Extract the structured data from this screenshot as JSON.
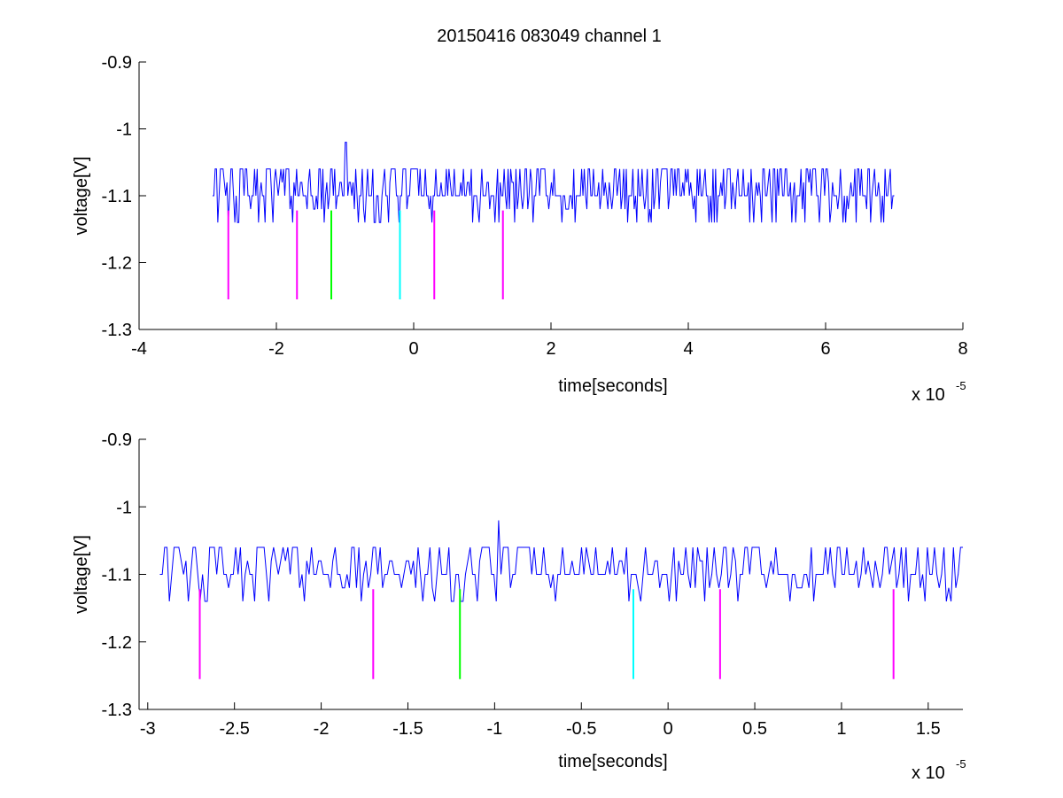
{
  "title": "20150416 083049 channel 1",
  "colors": {
    "signal": "#0000ff",
    "marker_magenta": "#ff00ff",
    "marker_green": "#00ff00",
    "marker_cyan": "#00ffff",
    "axes": "#000000",
    "background": "#ffffff"
  },
  "chart_data": [
    {
      "type": "line",
      "name": "full",
      "xlabel": "time[seconds]",
      "ylabel": "voltage[V]",
      "x_exponent_label": "x 10",
      "x_exponent": "-5",
      "xlim": [
        -4,
        8
      ],
      "ylim": [
        -1.3,
        -0.9
      ],
      "xticks": [
        -4,
        -2,
        0,
        2,
        4,
        6,
        8
      ],
      "xtick_labels": [
        "-4",
        "-2",
        "0",
        "2",
        "4",
        "6",
        "8"
      ],
      "yticks": [
        -0.9,
        -1,
        -1.1,
        -1.2,
        -1.3
      ],
      "ytick_labels": [
        "-0.9",
        "-1",
        "-1.1",
        "-1.2",
        "-1.3"
      ],
      "grid": false,
      "series": [
        {
          "style": "noisy-digitized",
          "x_range": [
            -2.93,
            7.0
          ],
          "baseline": -1.1,
          "levels": [
            -1.14,
            -1.12,
            -1.1,
            -1.08,
            -1.06
          ],
          "peak": {
            "x": -0.98,
            "y": -1.02
          }
        }
      ],
      "markers": [
        {
          "x": -2.7,
          "y": [
            -1.255,
            -1.122
          ],
          "color": "magenta"
        },
        {
          "x": -1.7,
          "y": [
            -1.255,
            -1.122
          ],
          "color": "magenta"
        },
        {
          "x": -1.2,
          "y": [
            -1.255,
            -1.122
          ],
          "color": "green"
        },
        {
          "x": -0.2,
          "y": [
            -1.255,
            -1.122
          ],
          "color": "cyan"
        },
        {
          "x": 0.3,
          "y": [
            -1.255,
            -1.122
          ],
          "color": "magenta"
        },
        {
          "x": 1.3,
          "y": [
            -1.255,
            -1.122
          ],
          "color": "magenta"
        }
      ]
    },
    {
      "type": "line",
      "name": "zoom",
      "xlabel": "time[seconds]",
      "ylabel": "voltage[V]",
      "x_exponent_label": "x 10",
      "x_exponent": "-5",
      "xlim": [
        -3.05,
        1.7
      ],
      "ylim": [
        -1.3,
        -0.9
      ],
      "xticks": [
        -3,
        -2.5,
        -2,
        -1.5,
        -1,
        -0.5,
        0,
        0.5,
        1,
        1.5
      ],
      "xtick_labels": [
        "-3",
        "-2.5",
        "-2",
        "-1.5",
        "-1",
        "-0.5",
        "0",
        "0.5",
        "1",
        "1.5"
      ],
      "yticks": [
        -0.9,
        -1,
        -1.1,
        -1.2,
        -1.3
      ],
      "ytick_labels": [
        "-0.9",
        "-1",
        "-1.1",
        "-1.2",
        "-1.3"
      ],
      "grid": false,
      "series": [
        {
          "style": "noisy-digitized",
          "x_range": [
            -2.93,
            1.7
          ],
          "baseline": -1.1,
          "levels": [
            -1.14,
            -1.12,
            -1.1,
            -1.08,
            -1.06
          ],
          "peak": {
            "x": -0.98,
            "y": -1.02
          }
        }
      ],
      "markers": [
        {
          "x": -2.7,
          "y": [
            -1.255,
            -1.122
          ],
          "color": "magenta"
        },
        {
          "x": -1.7,
          "y": [
            -1.255,
            -1.122
          ],
          "color": "magenta"
        },
        {
          "x": -1.2,
          "y": [
            -1.255,
            -1.122
          ],
          "color": "green"
        },
        {
          "x": -0.2,
          "y": [
            -1.255,
            -1.122
          ],
          "color": "cyan"
        },
        {
          "x": 0.3,
          "y": [
            -1.255,
            -1.122
          ],
          "color": "magenta"
        },
        {
          "x": 1.3,
          "y": [
            -1.255,
            -1.122
          ],
          "color": "magenta"
        }
      ]
    }
  ]
}
